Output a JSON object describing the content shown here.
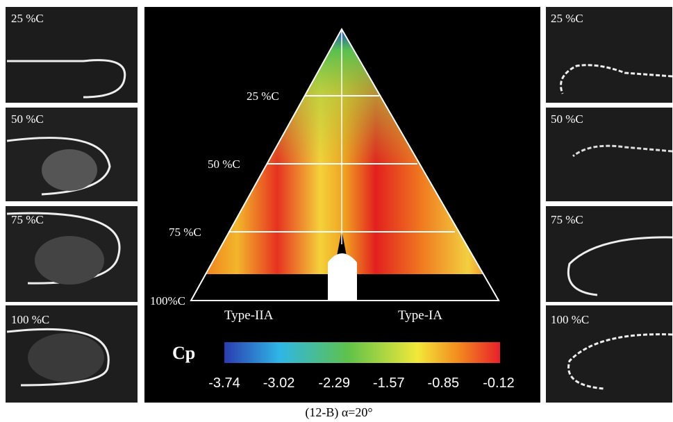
{
  "left_panels": [
    "25 %C",
    "50 %C",
    "75 %C",
    "100 %C"
  ],
  "right_panels": [
    "25 %C",
    "50 %C",
    "75 %C",
    "100 %C"
  ],
  "center": {
    "chord_labels": [
      "25 %C",
      "50 %C",
      "75 %C",
      "100%C"
    ],
    "types": [
      "Type-IIA",
      "Type-IA"
    ],
    "colorbar": {
      "title": "Cp",
      "ticks": [
        -3.74,
        -3.02,
        -2.29,
        -1.57,
        -0.85,
        -0.12
      ]
    }
  },
  "caption": "(12-B) α=20°"
}
